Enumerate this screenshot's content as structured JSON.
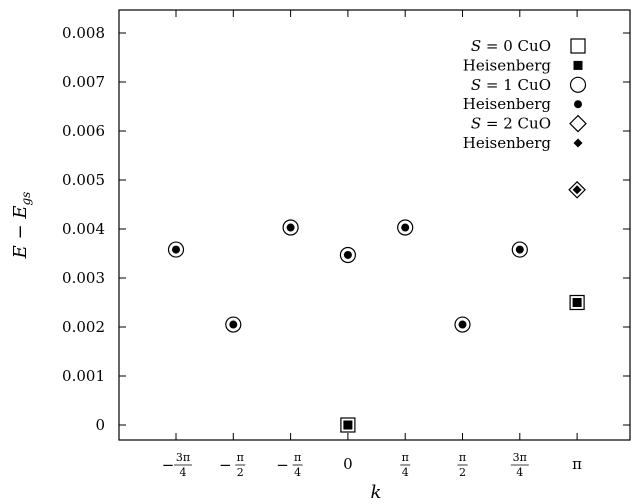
{
  "chart_data": {
    "type": "scatter",
    "xlabel": "k",
    "ylabel": "E − E_gs",
    "ylim": [
      -0.00025,
      0.0083
    ],
    "y_ticks": [
      "0",
      "0.001",
      "0.002",
      "0.003",
      "0.004",
      "0.005",
      "0.006",
      "0.007",
      "0.008"
    ],
    "x_categories": [
      {
        "label": "−3π/4",
        "sign": "−",
        "num": "3π",
        "den": "4"
      },
      {
        "label": "−π/2",
        "sign": "−",
        "num": "π",
        "den": "2"
      },
      {
        "label": "−π/4",
        "sign": "−",
        "num": "π",
        "den": "4"
      },
      {
        "label": "0",
        "sign": "",
        "num": "",
        "den": "",
        "plain": "0"
      },
      {
        "label": "π/4",
        "sign": "",
        "num": "π",
        "den": "4"
      },
      {
        "label": "π/2",
        "sign": "",
        "num": "π",
        "den": "2"
      },
      {
        "label": "3π/4",
        "sign": "",
        "num": "3π",
        "den": "4"
      },
      {
        "label": "π",
        "sign": "",
        "num": "",
        "den": "",
        "plain": "π"
      }
    ],
    "legend_position": "top-right",
    "series": [
      {
        "name": "S = 0 CuO",
        "marker": "open-square",
        "points": [
          [
            3,
            0.0
          ],
          [
            7,
            0.0025
          ]
        ]
      },
      {
        "name": "Heisenberg",
        "marker": "filled-square",
        "points": [
          [
            3,
            0.0
          ],
          [
            7,
            0.0025
          ]
        ]
      },
      {
        "name": "S = 1 CuO",
        "marker": "open-circle",
        "points": [
          [
            0,
            0.00358
          ],
          [
            1,
            0.00205
          ],
          [
            2,
            0.00403
          ],
          [
            3,
            0.00347
          ],
          [
            4,
            0.00403
          ],
          [
            5,
            0.00205
          ],
          [
            6,
            0.00358
          ]
        ]
      },
      {
        "name": "Heisenberg",
        "marker": "filled-circle",
        "points": [
          [
            0,
            0.00358
          ],
          [
            1,
            0.00205
          ],
          [
            2,
            0.00403
          ],
          [
            3,
            0.00347
          ],
          [
            4,
            0.00403
          ],
          [
            5,
            0.00205
          ],
          [
            6,
            0.00358
          ]
        ]
      },
      {
        "name": "S = 2 CuO",
        "marker": "open-diamond",
        "points": [
          [
            7,
            0.0048
          ]
        ]
      },
      {
        "name": "Heisenberg",
        "marker": "filled-diamond",
        "points": [
          [
            7,
            0.0048
          ]
        ]
      }
    ]
  }
}
